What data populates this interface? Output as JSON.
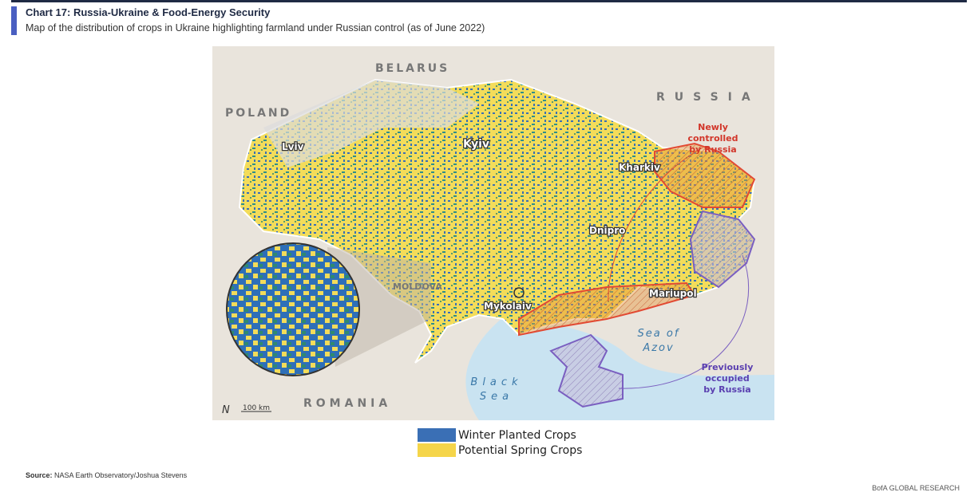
{
  "header": {
    "title": "Chart 17: Russia-Ukraine & Food-Energy Security",
    "subtitle": "Map of the distribution of crops in Ukraine highlighting farmland under Russian control (as of June 2022)"
  },
  "map": {
    "countries": [
      "BELARUS",
      "POLAND",
      "RUSSIA",
      "MOLDOVA",
      "ROMANIA"
    ],
    "cities": [
      "Lviv",
      "Kyiv",
      "Kharkiv",
      "Dnipro",
      "Mariupol",
      "Mykolaiv"
    ],
    "seas": {
      "azov": [
        "Sea of",
        "Azov"
      ],
      "black": [
        "Black",
        "Sea"
      ]
    },
    "annotations": {
      "newly": [
        "Newly",
        "controlled",
        "by Russia"
      ],
      "previously": [
        "Previously",
        "occupied",
        "by Russia"
      ]
    },
    "scale": "100 km",
    "north": "N"
  },
  "legend": [
    {
      "label": "Winter Planted Crops",
      "color": "#3a6fb5"
    },
    {
      "label": "Potential Spring Crops",
      "color": "#f5d54a"
    }
  ],
  "source": {
    "label": "Source:",
    "text": "NASA Earth Observatory/Joshua Stevens"
  },
  "footer": "BofA GLOBAL RESEARCH"
}
